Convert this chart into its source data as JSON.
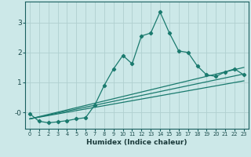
{
  "title": "",
  "xlabel": "Humidex (Indice chaleur)",
  "ylabel": "",
  "bg_color": "#cce8e8",
  "line_color": "#1a7a6e",
  "grid_color": "#b0d0d0",
  "humidex_x": [
    0,
    1,
    2,
    3,
    4,
    5,
    6,
    7,
    8,
    9,
    10,
    11,
    12,
    13,
    14,
    15,
    16,
    17,
    18,
    19,
    20,
    21,
    22,
    23
  ],
  "main_y": [
    -0.05,
    -0.3,
    -0.35,
    -0.32,
    -0.28,
    -0.22,
    -0.18,
    0.25,
    0.9,
    1.45,
    1.9,
    1.62,
    2.55,
    2.65,
    3.35,
    2.65,
    2.05,
    2.0,
    1.55,
    1.25,
    1.2,
    1.35,
    1.45,
    1.25
  ],
  "line1_x": [
    0,
    23
  ],
  "line1_y": [
    -0.22,
    1.05
  ],
  "line2_x": [
    0,
    23
  ],
  "line2_y": [
    -0.22,
    1.28
  ],
  "line3_x": [
    0,
    23
  ],
  "line3_y": [
    -0.22,
    1.5
  ],
  "ylim": [
    -0.55,
    3.7
  ],
  "xlim": [
    -0.5,
    23.5
  ],
  "yticks": [
    0,
    1,
    2,
    3
  ],
  "ytick_labels": [
    "-0",
    "1",
    "2",
    "3"
  ],
  "xticks": [
    0,
    1,
    2,
    3,
    4,
    5,
    6,
    7,
    8,
    9,
    10,
    11,
    12,
    13,
    14,
    15,
    16,
    17,
    18,
    19,
    20,
    21,
    22,
    23
  ]
}
